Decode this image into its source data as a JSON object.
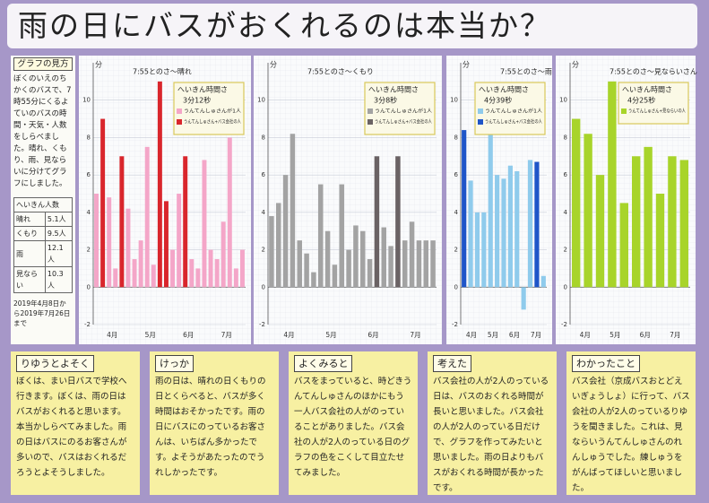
{
  "title": "雨の日にバスがおくれるのは本当か？",
  "sidebar": {
    "heading": "グラフの見方",
    "text": "ぼくのいえのちかくのバスで、7時55分にくるよていのバスの時間・天気・人数をしらべました。晴れ、くもり、雨、見ならいに分けてグラフにしました。",
    "table": {
      "header": "へいきん人数",
      "rows": [
        [
          "晴れ",
          "5.1人"
        ],
        [
          "くもり",
          "9.5人"
        ],
        [
          "雨",
          "12.1人"
        ],
        [
          "見ならい",
          "10.3人"
        ]
      ]
    },
    "period": "2019年4月8日から2019年7月26日まで"
  },
  "chart_data": [
    {
      "type": "bar",
      "title": "7:55とのさ～晴れ",
      "ylabel": "分",
      "note_heading": "へいきん時間さ",
      "note_value": "3分12秒",
      "months": [
        "4月",
        "5月",
        "6月",
        "7月"
      ],
      "ylim": [
        -2,
        12
      ],
      "yticks": [
        -2,
        0,
        2,
        4,
        6,
        8,
        10
      ],
      "grid": true,
      "series": [
        {
          "name": "うんてんしゅさんが1人",
          "color": "#f4a6c8",
          "values": [
            5,
            null,
            4.8,
            1,
            null,
            4.2,
            1.5,
            2.5,
            7.5,
            1.2,
            null,
            null,
            2,
            5,
            null,
            1.5,
            1,
            6.8,
            2,
            1.5,
            3.5,
            8,
            1,
            2
          ]
        },
        {
          "name": "うんてんしゅさん+バス会社の人",
          "color": "#d9262c",
          "values": [
            null,
            9,
            null,
            null,
            7,
            null,
            null,
            null,
            null,
            null,
            11,
            4.6,
            null,
            null,
            7,
            null,
            null,
            null,
            null,
            null,
            null,
            null,
            null,
            null
          ]
        }
      ]
    },
    {
      "type": "bar",
      "title": "7:55とのさ～くもり",
      "ylabel": "分",
      "note_heading": "へいきん時間さ",
      "note_value": "3分8秒",
      "months": [
        "4月",
        "5月",
        "6月",
        "7月"
      ],
      "ylim": [
        -2,
        12
      ],
      "yticks": [
        -2,
        0,
        2,
        4,
        6,
        8,
        10
      ],
      "grid": true,
      "series": [
        {
          "name": "うんてんしゅさんが1人",
          "color": "#a3a3a3",
          "values": [
            3.8,
            4.5,
            6,
            8.2,
            2.5,
            1.8,
            0.8,
            5.5,
            3,
            1.2,
            5.5,
            2,
            3.3,
            3,
            1.5,
            null,
            3.2,
            2.2,
            null,
            2.5,
            3.5,
            2.5,
            2.5,
            2.5
          ]
        },
        {
          "name": "うんてんしゅさん+バス会社の人",
          "color": "#6a6264",
          "values": [
            null,
            null,
            null,
            null,
            null,
            null,
            null,
            null,
            null,
            null,
            null,
            null,
            null,
            null,
            null,
            7,
            null,
            null,
            7,
            null,
            null,
            null,
            null,
            null
          ]
        }
      ]
    },
    {
      "type": "bar",
      "title": "7:55とのさ～雨",
      "ylabel": "分",
      "note_heading": "へいきん時間さ",
      "note_value": "4分39秒",
      "months": [
        "4月",
        "5月",
        "6月",
        "7月"
      ],
      "ylim": [
        -2,
        12
      ],
      "yticks": [
        -2,
        0,
        2,
        4,
        6,
        8,
        10
      ],
      "grid": true,
      "series": [
        {
          "name": "うんてんしゅさんが1人",
          "color": "#8fcbec",
          "values": [
            null,
            5.7,
            4,
            4,
            9.7,
            6,
            5.8,
            6.5,
            6.2,
            -1.2,
            6.8,
            null,
            0.6
          ]
        },
        {
          "name": "うんてんしゅさん+バス会社の人",
          "color": "#1f55c8",
          "values": [
            8.4,
            null,
            null,
            null,
            null,
            null,
            null,
            null,
            null,
            null,
            null,
            6.7,
            null
          ]
        }
      ]
    },
    {
      "type": "bar",
      "title": "7:55とのさ～見ならいさん",
      "ylabel": "分",
      "note_heading": "へいきん時間さ",
      "note_value": "4分25秒",
      "months": [
        "4月",
        "5月",
        "6月",
        "7月"
      ],
      "ylim": [
        -2,
        12
      ],
      "yticks": [
        -2,
        0,
        2,
        4,
        6,
        8,
        10
      ],
      "grid": true,
      "series": [
        {
          "name": "うんてんしゅさん+見ならいの人",
          "color": "#a8d42a",
          "values": [
            9,
            8.2,
            6,
            11,
            4.5,
            7,
            7.5,
            5,
            7,
            6.8
          ]
        }
      ]
    }
  ],
  "boxes": [
    {
      "heading": "りゆうとよそく",
      "text": "ぼくは、まい日バスで学校へ行きます。ぼくは、雨の日はバスがおくれると思います。本当かしらべてみました。雨の日はバスにのるお客さんが多いので、バスはおくれるだろうとよそうしました。"
    },
    {
      "heading": "けっか",
      "text": "雨の日は、晴れの日くもりの日とくらべると、バスが多く時間はおそかったです。雨の日にバスにのっているお客さんは、いちばん多かったです。よそうがあたったのでうれしかったです。"
    },
    {
      "heading": "よくみると",
      "text": "バスをまっていると、時どきうんてんしゅさんのほかにもう一人バス会社の人がのっていることがありました。バス会社の人が2人のっている日のグラフの色をこくして目立たせてみました。"
    },
    {
      "heading": "考えた",
      "text": "バス会社の人が2人のっている日は、バスのおくれる時間が長いと思いました。バス会社の人が2人のっている日だけで、グラフを作ってみたいと思いました。雨の日よりもバスがおくれる時間が長かったです。"
    },
    {
      "heading": "わかったこと",
      "text": "バス会社（京成バスおとどえいぎょうしょ）に行って、バス会社の人が2人のっているりゆうを聞きました。これは、見ならいうんてんしゅさんのれんしゅうでした。練しゅうをがんばってほしいと思いました。"
    }
  ]
}
